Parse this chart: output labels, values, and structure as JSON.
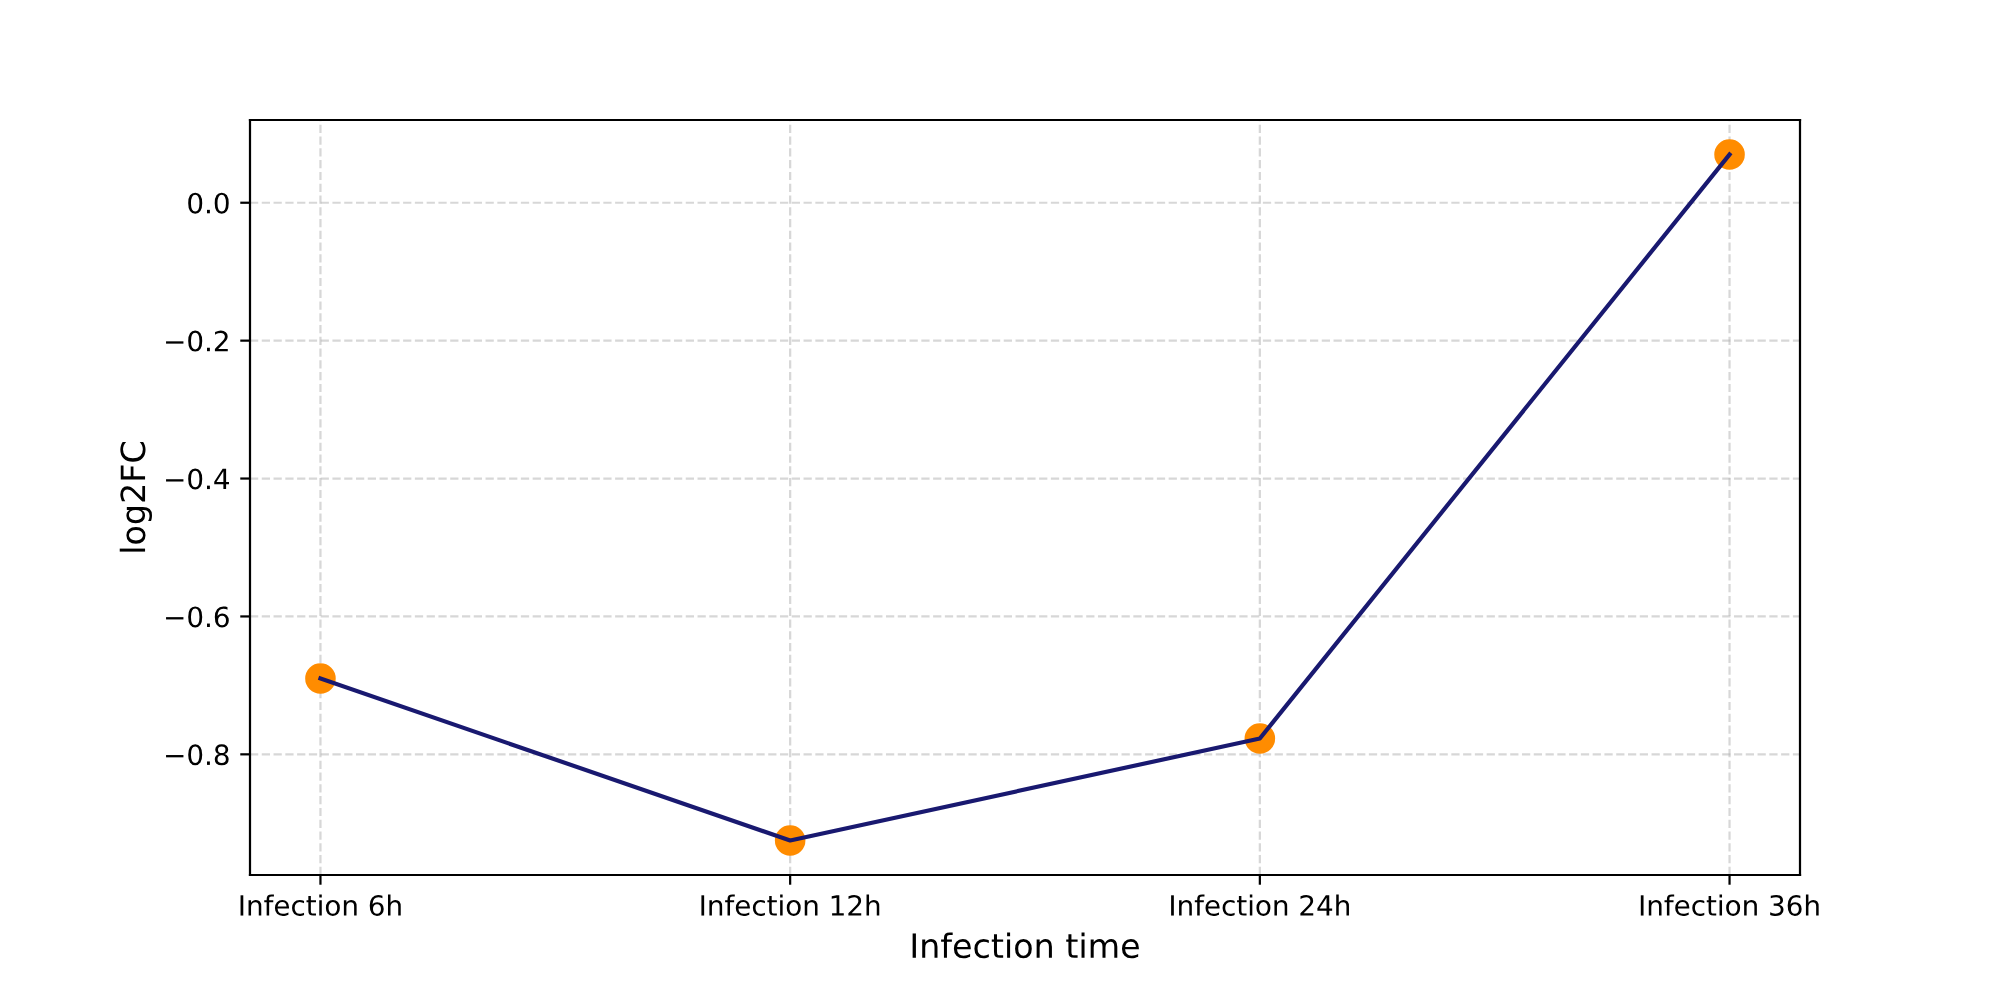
{
  "chart_data": {
    "type": "line",
    "xlabel": "Infection time",
    "ylabel": "log2FC",
    "categories": [
      "Infection 6h",
      "Infection 12h",
      "Infection 24h",
      "Infection 36h"
    ],
    "series": [
      {
        "color": "#191970",
        "values": [
          -0.69,
          -0.925,
          -0.777,
          0.07
        ]
      },
      {
        "type": "scatter",
        "color": "#ff8c00",
        "marker": "circle",
        "values": [
          -0.69,
          -0.925,
          -0.777,
          0.07
        ]
      }
    ],
    "ylim": [
      -0.975,
      0.12
    ],
    "yticks": [
      {
        "value": -0.8,
        "label": "−0.8"
      },
      {
        "value": -0.6,
        "label": "−0.6"
      },
      {
        "value": -0.4,
        "label": "−0.4"
      },
      {
        "value": -0.2,
        "label": "−0.2"
      },
      {
        "value": 0.0,
        "label": "0.0"
      }
    ],
    "grid": true
  }
}
